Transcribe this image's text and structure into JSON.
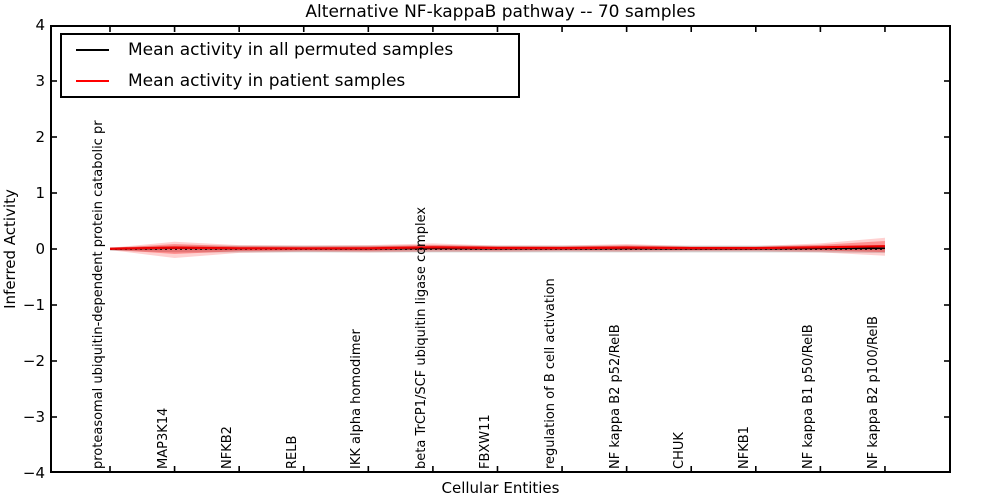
{
  "title": "Alternative NF-kappaB pathway -- 70 samples",
  "axes": {
    "x_label": "Cellular Entities",
    "y_label": "Inferred Activity",
    "y_tick_labels": [
      "4",
      "3",
      "2",
      "1",
      "0",
      "−1",
      "−2",
      "−3",
      "−4"
    ]
  },
  "legend": {
    "entries": [
      {
        "label": "Mean activity in all permuted samples",
        "color": "#000000"
      },
      {
        "label": "Mean activity in patient samples",
        "color": "#ff0000"
      }
    ]
  },
  "colors": {
    "frame": "#000000",
    "zero_line": "#000000",
    "permuted_line": "#000000",
    "patient_line": "#ee0000",
    "permuted_band": "rgba(150,150,150,0.45)",
    "patient_band_outer": "rgba(255,0,0,0.18)",
    "patient_band_inner": "rgba(255,0,0,0.30)"
  },
  "chart_data": {
    "type": "line",
    "title": "Alternative NF-kappaB pathway -- 70 samples",
    "xlabel": "Cellular Entities",
    "ylabel": "Inferred Activity",
    "ylim": [
      -4,
      4
    ],
    "yticks": [
      4,
      3,
      2,
      1,
      0,
      -1,
      -2,
      -3,
      -4
    ],
    "grid": false,
    "legend_position": "upper left",
    "categories": [
      "proteasomal ubiquitin-dependent protein catabolic pr",
      "MAP3K14",
      "NFKB2",
      "RELB",
      "IKK alpha homodimer",
      "beta TrCP1/SCF ubiquitin ligase complex",
      "FBXW11",
      "regulation of B cell activation",
      "NF kappa B2 p52/RelB",
      "CHUK",
      "NFKB1",
      "NF kappa B1 p50/RelB",
      "NF kappa B2 p100/RelB"
    ],
    "series": [
      {
        "name": "Mean activity in all permuted samples",
        "style": "solid",
        "color": "#000000",
        "values": [
          0.0,
          0.015,
          0.005,
          0.003,
          0.004,
          0.01,
          0.006,
          0.005,
          0.008,
          0.004,
          0.004,
          0.01,
          0.012
        ]
      },
      {
        "name": "Mean activity in patient samples",
        "style": "solid",
        "color": "#ff0000",
        "values": [
          0.005,
          0.025,
          0.012,
          0.01,
          0.012,
          0.03,
          0.018,
          0.015,
          0.025,
          0.015,
          0.015,
          0.03,
          0.05
        ]
      }
    ],
    "bands": [
      {
        "name": "permuted samples std band",
        "upper": [
          0.03,
          0.06,
          0.06,
          0.06,
          0.06,
          0.06,
          0.06,
          0.06,
          0.06,
          0.06,
          0.06,
          0.06,
          0.07
        ],
        "lower": [
          -0.03,
          -0.06,
          -0.06,
          -0.06,
          -0.06,
          -0.06,
          -0.06,
          -0.06,
          -0.06,
          -0.06,
          -0.06,
          -0.06,
          -0.07
        ]
      },
      {
        "name": "patient samples std band",
        "upper": [
          0.02,
          0.13,
          0.07,
          0.06,
          0.07,
          0.1,
          0.06,
          0.06,
          0.09,
          0.05,
          0.05,
          0.1,
          0.2
        ],
        "lower": [
          -0.02,
          -0.16,
          -0.07,
          -0.05,
          -0.06,
          -0.05,
          -0.05,
          -0.04,
          -0.05,
          -0.04,
          -0.04,
          -0.06,
          -0.12
        ]
      }
    ],
    "zero_line": {
      "value": 0,
      "style": "dotted",
      "color": "#000000"
    }
  }
}
